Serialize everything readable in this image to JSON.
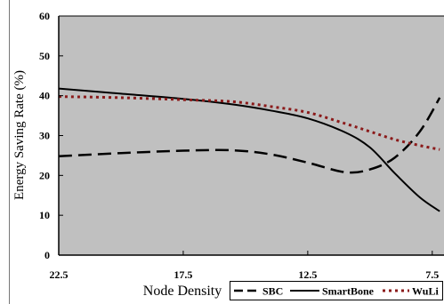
{
  "chart_data": {
    "type": "line",
    "title": "",
    "xlabel": "Node Density",
    "ylabel": "Energy Saving Rate (%)",
    "xlim": [
      22.5,
      7.1
    ],
    "ylim": [
      0,
      60
    ],
    "xticks": [
      22.5,
      17.5,
      12.5,
      7.5
    ],
    "yticks": [
      0,
      10,
      20,
      30,
      40,
      50,
      60
    ],
    "x": [
      22.5,
      20.0,
      17.5,
      15.5,
      14.0,
      12.5,
      11.0,
      10.0,
      9.0,
      8.0,
      7.2
    ],
    "series": [
      {
        "name": "SBC",
        "values": [
          24.8,
          25.6,
          26.2,
          26.3,
          25.3,
          23.2,
          20.8,
          21.5,
          24.5,
          31.0,
          39.5
        ],
        "color": "#000000",
        "style": "dashed"
      },
      {
        "name": "SmartBone",
        "values": [
          41.8,
          40.5,
          39.2,
          37.8,
          36.3,
          34.3,
          30.8,
          27.0,
          20.5,
          14.5,
          11.0
        ],
        "color": "#000000",
        "style": "solid"
      },
      {
        "name": "WuLi",
        "values": [
          39.8,
          39.5,
          39.0,
          38.5,
          37.3,
          35.8,
          33.0,
          31.0,
          29.0,
          27.5,
          26.5
        ],
        "color": "#8b1a1a",
        "style": "dotted"
      }
    ],
    "grid": false,
    "background": "#c0c0c0",
    "legend_position": "bottom-right"
  }
}
